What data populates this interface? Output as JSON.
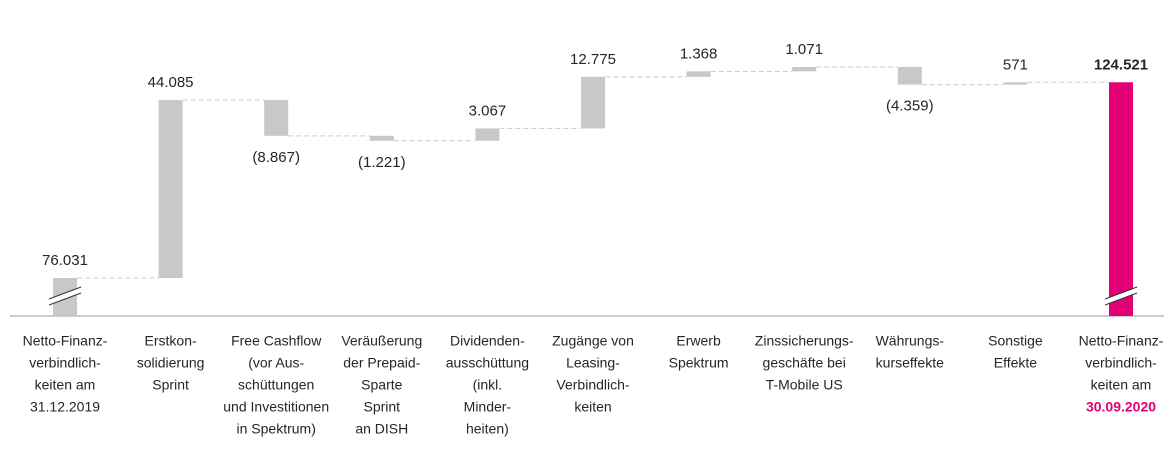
{
  "chart_data": {
    "type": "waterfall",
    "categories": [
      [
        "Netto-Finanz-",
        "verbindlich-",
        "keiten am",
        "31.12.2019"
      ],
      [
        "Erstkon-",
        "solidierung",
        "Sprint"
      ],
      [
        "Free Cashflow",
        "(vor Aus-",
        "schüttungen",
        "und Investitionen",
        "in Spektrum)"
      ],
      [
        "Veräußerung",
        "der Prepaid-",
        "Sparte",
        "Sprint",
        "an DISH"
      ],
      [
        "Dividenden-",
        "ausschüttung",
        "(inkl.",
        "Minder-",
        "heiten)"
      ],
      [
        "Zugänge von",
        "Leasing-",
        "Verbindlich-",
        "keiten"
      ],
      [
        "Erwerb",
        "Spektrum"
      ],
      [
        "Zinssicherungs-",
        "geschäfte bei",
        "T-Mobile US"
      ],
      [
        "Währungs-",
        "kurseffekte"
      ],
      [
        "Sonstige",
        "Effekte"
      ],
      [
        "Netto-Finanz-",
        "verbindlich-",
        "keiten am",
        "30.09.2020"
      ]
    ],
    "values": [
      76031,
      44085,
      -8867,
      -1221,
      3067,
      12775,
      1368,
      1071,
      -4359,
      571,
      124521
    ],
    "value_labels": [
      "76.031",
      "44.085",
      "(8.867)",
      "(1.221)",
      "3.067",
      "12.775",
      "1.368",
      "1.071",
      "(4.359)",
      "571",
      "124.521"
    ],
    "color": "#c8c8c8",
    "total_color": "#e20074"
  }
}
